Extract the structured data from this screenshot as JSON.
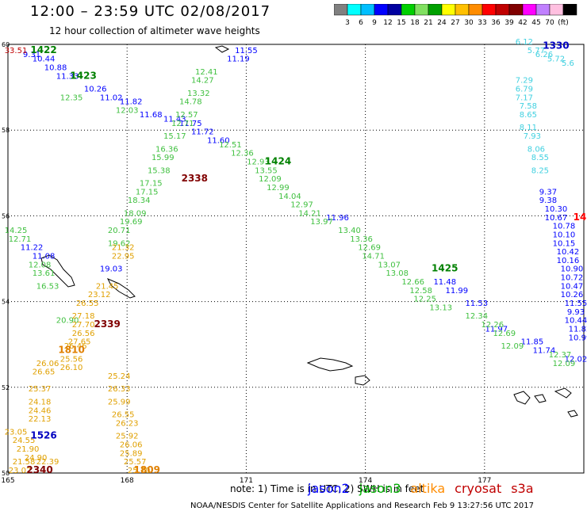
{
  "header": {
    "title": "12:00 – 23:59 UTC 02/08/2017",
    "subtitle": "12 hour collection of altimeter wave heights"
  },
  "legend": {
    "colors": [
      "#808080",
      "#00ffff",
      "#00bfff",
      "#0000ff",
      "#0000a0",
      "#00d000",
      "#80e060",
      "#00a000",
      "#ffff00",
      "#ffc000",
      "#ff8c00",
      "#ff0000",
      "#c00000",
      "#800000",
      "#ff00ff",
      "#c080ff",
      "#ffc0e0",
      "#000000"
    ],
    "labels": [
      "3",
      "6",
      "9",
      "12",
      "15",
      "18",
      "21",
      "24",
      "27",
      "30",
      "33",
      "36",
      "39",
      "42",
      "45",
      "70",
      "(ft)"
    ]
  },
  "footer": {
    "note": "note: 1) Time is in UTC; 2) SWH is in feet",
    "credit": "NOAA/NESDIS Center for Satellite Applications and Research    Feb  9 13:27:56 UTC 2017",
    "missions": [
      {
        "name": "jason2",
        "color": "#0000ff"
      },
      {
        "name": "jason3",
        "color": "#00b000"
      },
      {
        "name": "altika",
        "color": "#ff8c00"
      },
      {
        "name": "cryosat",
        "color": "#c00000"
      },
      {
        "name": "s3a",
        "color": "#c00000"
      }
    ]
  },
  "chart_data": {
    "type": "scatter",
    "xlim": [
      165,
      179.5
    ],
    "ylim": [
      50,
      60
    ],
    "x_ticks": [
      165,
      168,
      171,
      174,
      177
    ],
    "y_ticks": [
      50,
      52,
      54,
      56,
      58,
      60
    ],
    "grid": true,
    "series": [
      {
        "name": "jason2",
        "color": "#0000ff",
        "points": [
          {
            "lon": 165.6,
            "lat": 59.7,
            "v": "9.31"
          },
          {
            "lon": 165.9,
            "lat": 59.6,
            "v": "10.44"
          },
          {
            "lon": 166.2,
            "lat": 59.4,
            "v": "10.88"
          },
          {
            "lon": 166.5,
            "lat": 59.2,
            "v": "11.33"
          },
          {
            "lon": 167.2,
            "lat": 58.9,
            "v": "10.26"
          },
          {
            "lon": 167.6,
            "lat": 58.7,
            "v": "11.02"
          },
          {
            "lon": 168.1,
            "lat": 58.6,
            "v": "11.82"
          },
          {
            "lon": 168.6,
            "lat": 58.3,
            "v": "11.68"
          },
          {
            "lon": 169.2,
            "lat": 58.2,
            "v": "11.43"
          },
          {
            "lon": 169.6,
            "lat": 58.1,
            "v": "11.75"
          },
          {
            "lon": 169.9,
            "lat": 57.9,
            "v": "11.72"
          },
          {
            "lon": 170.3,
            "lat": 57.7,
            "v": "11.60"
          },
          {
            "lon": 171.0,
            "lat": 59.8,
            "v": "11.55"
          },
          {
            "lon": 170.8,
            "lat": 59.6,
            "v": "11.19"
          },
          {
            "lon": 167.6,
            "lat": 54.7,
            "v": "19.03"
          },
          {
            "lon": 165.6,
            "lat": 55.2,
            "v": "11.22"
          },
          {
            "lon": 165.9,
            "lat": 55.0,
            "v": "11.08"
          },
          {
            "lon": 173.3,
            "lat": 55.9,
            "v": "11.96"
          },
          {
            "lon": 176.0,
            "lat": 54.4,
            "v": "11.48"
          },
          {
            "lon": 176.3,
            "lat": 54.2,
            "v": "11.99"
          },
          {
            "lon": 176.8,
            "lat": 53.9,
            "v": "11.53"
          },
          {
            "lon": 177.3,
            "lat": 53.3,
            "v": "11.97"
          },
          {
            "lon": 178.2,
            "lat": 53.0,
            "v": "11.85"
          },
          {
            "lon": 178.5,
            "lat": 52.8,
            "v": "11.74"
          },
          {
            "lon": 178.6,
            "lat": 56.5,
            "v": "9.37"
          },
          {
            "lon": 178.6,
            "lat": 56.3,
            "v": "9.38"
          },
          {
            "lon": 178.8,
            "lat": 56.1,
            "v": "10.30"
          },
          {
            "lon": 178.8,
            "lat": 55.9,
            "v": "10.67"
          },
          {
            "lon": 179.0,
            "lat": 55.7,
            "v": "10.78"
          },
          {
            "lon": 179.0,
            "lat": 55.5,
            "v": "10.10"
          },
          {
            "lon": 179.0,
            "lat": 55.3,
            "v": "10.15"
          },
          {
            "lon": 179.1,
            "lat": 55.1,
            "v": "10.42"
          },
          {
            "lon": 179.1,
            "lat": 54.9,
            "v": "10.16"
          },
          {
            "lon": 179.2,
            "lat": 54.7,
            "v": "10.90"
          },
          {
            "lon": 179.2,
            "lat": 54.5,
            "v": "10.72"
          },
          {
            "lon": 179.2,
            "lat": 54.3,
            "v": "10.47"
          },
          {
            "lon": 179.2,
            "lat": 54.1,
            "v": "10.26"
          },
          {
            "lon": 179.3,
            "lat": 53.9,
            "v": "11.55"
          },
          {
            "lon": 179.3,
            "lat": 53.7,
            "v": "9.93"
          },
          {
            "lon": 179.3,
            "lat": 53.5,
            "v": "10.44"
          },
          {
            "lon": 179.4,
            "lat": 53.3,
            "v": "11.82"
          },
          {
            "lon": 179.4,
            "lat": 53.1,
            "v": "10.99"
          },
          {
            "lon": 179.3,
            "lat": 52.6,
            "v": "12.02"
          }
        ]
      },
      {
        "name": "jason3",
        "color": "#40c040",
        "points": [
          {
            "lon": 165.2,
            "lat": 55.6,
            "v": "14.25"
          },
          {
            "lon": 165.3,
            "lat": 55.4,
            "v": "12.71"
          },
          {
            "lon": 165.8,
            "lat": 54.8,
            "v": "12.08"
          },
          {
            "lon": 165.9,
            "lat": 54.6,
            "v": "13.61"
          },
          {
            "lon": 166.0,
            "lat": 54.3,
            "v": "16.53"
          },
          {
            "lon": 166.5,
            "lat": 53.5,
            "v": "20.90"
          },
          {
            "lon": 166.6,
            "lat": 58.7,
            "v": "12.35"
          },
          {
            "lon": 168.0,
            "lat": 58.4,
            "v": "12.03"
          },
          {
            "lon": 170.0,
            "lat": 59.3,
            "v": "12.41"
          },
          {
            "lon": 169.9,
            "lat": 59.1,
            "v": "14.27"
          },
          {
            "lon": 169.8,
            "lat": 58.8,
            "v": "13.32"
          },
          {
            "lon": 169.6,
            "lat": 58.6,
            "v": "14.78"
          },
          {
            "lon": 169.5,
            "lat": 58.3,
            "v": "12.57"
          },
          {
            "lon": 169.4,
            "lat": 58.1,
            "v": "12.71"
          },
          {
            "lon": 169.2,
            "lat": 57.8,
            "v": "15.17"
          },
          {
            "lon": 169.0,
            "lat": 57.5,
            "v": "16.36"
          },
          {
            "lon": 168.9,
            "lat": 57.3,
            "v": "15.99"
          },
          {
            "lon": 168.8,
            "lat": 57.0,
            "v": "15.38"
          },
          {
            "lon": 168.6,
            "lat": 56.7,
            "v": "17.15"
          },
          {
            "lon": 168.5,
            "lat": 56.5,
            "v": "17.15"
          },
          {
            "lon": 168.3,
            "lat": 56.3,
            "v": "18.34"
          },
          {
            "lon": 168.2,
            "lat": 56.0,
            "v": "18.09"
          },
          {
            "lon": 168.1,
            "lat": 55.8,
            "v": "19.69"
          },
          {
            "lon": 167.8,
            "lat": 55.6,
            "v": "20.71"
          },
          {
            "lon": 167.8,
            "lat": 55.3,
            "v": "19.62"
          },
          {
            "lon": 170.6,
            "lat": 57.6,
            "v": "12.51"
          },
          {
            "lon": 170.9,
            "lat": 57.4,
            "v": "12.36"
          },
          {
            "lon": 171.3,
            "lat": 57.2,
            "v": "12.93"
          },
          {
            "lon": 171.5,
            "lat": 57.0,
            "v": "13.55"
          },
          {
            "lon": 171.6,
            "lat": 56.8,
            "v": "12.09"
          },
          {
            "lon": 171.8,
            "lat": 56.6,
            "v": "12.99"
          },
          {
            "lon": 172.1,
            "lat": 56.4,
            "v": "14.04"
          },
          {
            "lon": 172.4,
            "lat": 56.2,
            "v": "12.97"
          },
          {
            "lon": 172.6,
            "lat": 56.0,
            "v": "14.21"
          },
          {
            "lon": 172.9,
            "lat": 55.8,
            "v": "13.97"
          },
          {
            "lon": 173.6,
            "lat": 55.6,
            "v": "13.40"
          },
          {
            "lon": 173.9,
            "lat": 55.4,
            "v": "13.36"
          },
          {
            "lon": 174.1,
            "lat": 55.2,
            "v": "12.69"
          },
          {
            "lon": 174.2,
            "lat": 55.0,
            "v": "14.71"
          },
          {
            "lon": 174.6,
            "lat": 54.8,
            "v": "13.07"
          },
          {
            "lon": 174.8,
            "lat": 54.6,
            "v": "13.08"
          },
          {
            "lon": 175.2,
            "lat": 54.4,
            "v": "12.66"
          },
          {
            "lon": 175.4,
            "lat": 54.2,
            "v": "12.58"
          },
          {
            "lon": 175.5,
            "lat": 54.0,
            "v": "12.25"
          },
          {
            "lon": 175.9,
            "lat": 53.8,
            "v": "13.13"
          },
          {
            "lon": 176.8,
            "lat": 53.6,
            "v": "12.34"
          },
          {
            "lon": 177.2,
            "lat": 53.4,
            "v": "12.26"
          },
          {
            "lon": 177.5,
            "lat": 53.2,
            "v": "12.69"
          },
          {
            "lon": 177.7,
            "lat": 52.9,
            "v": "12.09"
          },
          {
            "lon": 178.9,
            "lat": 52.7,
            "v": "12.37"
          },
          {
            "lon": 179.0,
            "lat": 52.5,
            "v": "12.09"
          }
        ]
      },
      {
        "name": "altika",
        "color": "#e0a000",
        "points": [
          {
            "lon": 167.9,
            "lat": 55.2,
            "v": "21.32"
          },
          {
            "lon": 167.9,
            "lat": 55.0,
            "v": "22.95"
          },
          {
            "lon": 167.5,
            "lat": 54.3,
            "v": "21.45"
          },
          {
            "lon": 167.3,
            "lat": 54.1,
            "v": "23.12"
          },
          {
            "lon": 167.0,
            "lat": 53.9,
            "v": "26.55"
          },
          {
            "lon": 166.9,
            "lat": 53.6,
            "v": "27.18"
          },
          {
            "lon": 166.9,
            "lat": 53.4,
            "v": "27.70"
          },
          {
            "lon": 166.9,
            "lat": 53.2,
            "v": "26.56"
          },
          {
            "lon": 166.8,
            "lat": 53.0,
            "v": "27.65"
          },
          {
            "lon": 166.7,
            "lat": 52.9,
            "v": "26.46"
          },
          {
            "lon": 166.6,
            "lat": 52.6,
            "v": "25.56"
          },
          {
            "lon": 166.6,
            "lat": 52.4,
            "v": "26.10"
          },
          {
            "lon": 166.0,
            "lat": 52.5,
            "v": "26.06"
          },
          {
            "lon": 165.9,
            "lat": 52.3,
            "v": "26.65"
          },
          {
            "lon": 167.8,
            "lat": 52.2,
            "v": "25.24"
          },
          {
            "lon": 167.8,
            "lat": 51.9,
            "v": "26.33"
          },
          {
            "lon": 167.8,
            "lat": 51.6,
            "v": "25.99"
          },
          {
            "lon": 167.9,
            "lat": 51.3,
            "v": "26.55"
          },
          {
            "lon": 168.0,
            "lat": 51.1,
            "v": "26.23"
          },
          {
            "lon": 168.0,
            "lat": 50.8,
            "v": "25.92"
          },
          {
            "lon": 168.1,
            "lat": 50.6,
            "v": "26.06"
          },
          {
            "lon": 168.1,
            "lat": 50.4,
            "v": "25.89"
          },
          {
            "lon": 168.2,
            "lat": 50.2,
            "v": "25.57"
          },
          {
            "lon": 168.3,
            "lat": 50.0,
            "v": "25.70"
          },
          {
            "lon": 165.8,
            "lat": 51.9,
            "v": "25.37"
          },
          {
            "lon": 165.8,
            "lat": 51.6,
            "v": "24.18"
          },
          {
            "lon": 165.8,
            "lat": 51.4,
            "v": "24.46"
          },
          {
            "lon": 165.8,
            "lat": 51.2,
            "v": "22.13"
          },
          {
            "lon": 165.2,
            "lat": 50.9,
            "v": "23.05"
          },
          {
            "lon": 165.4,
            "lat": 50.7,
            "v": "24.55"
          },
          {
            "lon": 165.5,
            "lat": 50.5,
            "v": "21.90"
          },
          {
            "lon": 165.7,
            "lat": 50.3,
            "v": "24.90"
          },
          {
            "lon": 165.4,
            "lat": 50.2,
            "v": "21.58"
          },
          {
            "lon": 166.0,
            "lat": 50.2,
            "v": "22.39"
          },
          {
            "lon": 165.3,
            "lat": 50.0,
            "v": "23.02"
          }
        ]
      },
      {
        "name": "cryosat",
        "color": "#c00000",
        "points": [
          {
            "lon": 165.2,
            "lat": 59.8,
            "v": "33.51"
          }
        ]
      },
      {
        "name": "s3a",
        "color": "#40d0e0",
        "points": [
          {
            "lon": 178.0,
            "lat": 60.0,
            "v": "6.12"
          },
          {
            "lon": 178.3,
            "lat": 59.8,
            "v": "5.77"
          },
          {
            "lon": 178.5,
            "lat": 59.7,
            "v": "6.26"
          },
          {
            "lon": 178.8,
            "lat": 59.6,
            "v": "5.72"
          },
          {
            "lon": 179.1,
            "lat": 59.5,
            "v": "5.6"
          },
          {
            "lon": 178.0,
            "lat": 59.1,
            "v": "7.29"
          },
          {
            "lon": 178.0,
            "lat": 58.9,
            "v": "6.79"
          },
          {
            "lon": 178.0,
            "lat": 58.7,
            "v": "7.17"
          },
          {
            "lon": 178.1,
            "lat": 58.5,
            "v": "7.58"
          },
          {
            "lon": 178.1,
            "lat": 58.3,
            "v": "8.65"
          },
          {
            "lon": 178.1,
            "lat": 58.0,
            "v": "8.11"
          },
          {
            "lon": 178.2,
            "lat": 57.8,
            "v": "7.93"
          },
          {
            "lon": 178.3,
            "lat": 57.5,
            "v": "8.06"
          },
          {
            "lon": 178.4,
            "lat": 57.3,
            "v": "8.55"
          },
          {
            "lon": 178.4,
            "lat": 57.0,
            "v": "8.25"
          }
        ]
      }
    ],
    "time_labels": [
      {
        "lon": 165.9,
        "lat": 59.8,
        "text": "1422",
        "color": "#008000"
      },
      {
        "lon": 166.9,
        "lat": 59.2,
        "text": "1423",
        "color": "#008000"
      },
      {
        "lon": 178.8,
        "lat": 59.9,
        "text": "1330",
        "color": "#0000c0"
      },
      {
        "lon": 171.8,
        "lat": 57.2,
        "text": "1424",
        "color": "#008000"
      },
      {
        "lon": 169.7,
        "lat": 56.8,
        "text": "2338",
        "color": "#800000"
      },
      {
        "lon": 179.4,
        "lat": 55.9,
        "text": "14",
        "color": "#ff0000"
      },
      {
        "lon": 176.0,
        "lat": 54.7,
        "text": "1425",
        "color": "#008000"
      },
      {
        "lon": 167.5,
        "lat": 53.4,
        "text": "2339",
        "color": "#800000"
      },
      {
        "lon": 166.6,
        "lat": 52.8,
        "text": "1810",
        "color": "#e08000"
      },
      {
        "lon": 165.9,
        "lat": 50.8,
        "text": "1526",
        "color": "#0000c0"
      },
      {
        "lon": 165.8,
        "lat": 50.0,
        "text": "2340",
        "color": "#800000"
      },
      {
        "lon": 168.5,
        "lat": 50.0,
        "text": "1809",
        "color": "#e08000"
      }
    ]
  }
}
